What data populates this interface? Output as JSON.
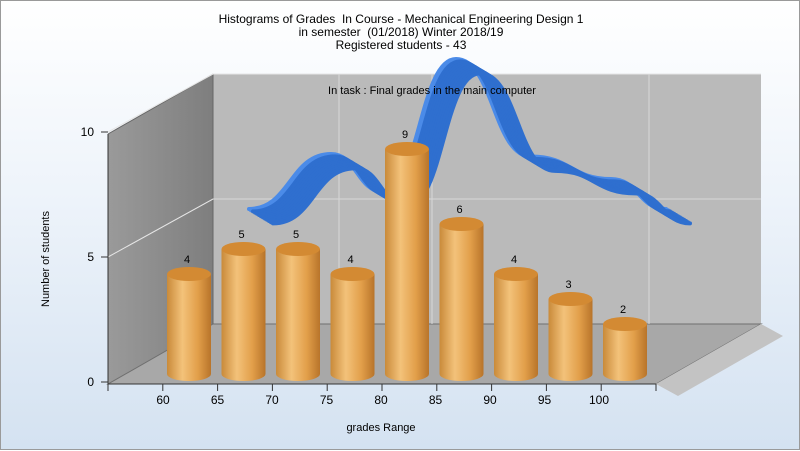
{
  "title_lines": [
    "Histograms of Grades  In Course - Mechanical Engineering Design 1",
    "in semester  (01/2018) Winter 2018/19",
    "Registered students - 43"
  ],
  "chart_data": {
    "type": "bar",
    "annotation": "In task : Final grades in the main computer",
    "xlabel": "grades Range",
    "ylabel": "Number of students",
    "x_tick_labels": [
      "60",
      "65",
      "70",
      "75",
      "80",
      "85",
      "90",
      "95",
      "100"
    ],
    "y_ticks": [
      0,
      5,
      10
    ],
    "ylim": [
      0,
      10
    ],
    "grid": true,
    "series": [
      {
        "type": "bar",
        "values": [
          4,
          5,
          5,
          4,
          9,
          6,
          4,
          3,
          2
        ],
        "show_data_labels": true
      },
      {
        "type": "line",
        "style": "3d-ribbon",
        "values": [
          4.6,
          6.8,
          5.3,
          10.6,
          6.7,
          5.8,
          4.6
        ]
      }
    ],
    "colors": {
      "bar_body": "#e4a24e",
      "bar_top": "#d38a33",
      "ribbon": "#2f6fcf",
      "back_wall": "#bababa",
      "side_wall": "#8f8f8f",
      "floor": "#a8a8a8"
    }
  }
}
